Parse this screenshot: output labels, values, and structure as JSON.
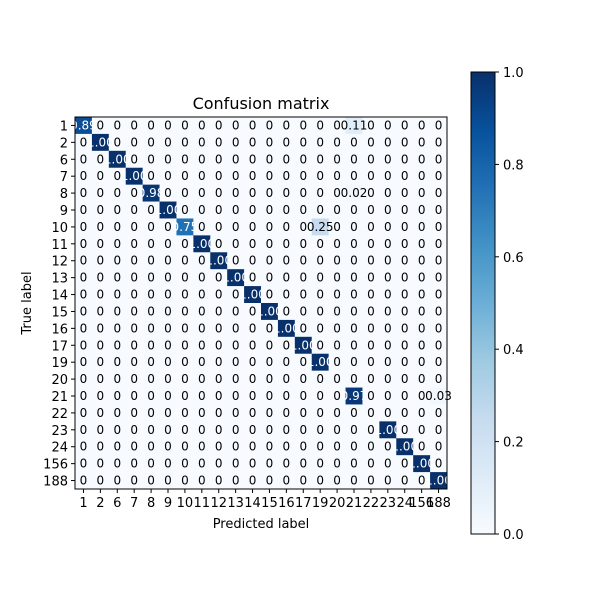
{
  "chart_data": {
    "type": "heatmap",
    "title": "Confusion matrix",
    "xlabel": "Predicted label",
    "ylabel": "True label",
    "labels": [
      "1",
      "2",
      "6",
      "7",
      "8",
      "9",
      "10",
      "11",
      "12",
      "13",
      "14",
      "15",
      "16",
      "17",
      "19",
      "20",
      "21",
      "22",
      "23",
      "24",
      "156",
      "188"
    ],
    "matrix": [
      [
        0.89,
        0,
        0,
        0,
        0,
        0,
        0,
        0,
        0,
        0,
        0,
        0,
        0,
        0,
        0,
        0,
        0.11,
        0,
        0,
        0,
        0,
        0
      ],
      [
        0,
        1.0,
        0,
        0,
        0,
        0,
        0,
        0,
        0,
        0,
        0,
        0,
        0,
        0,
        0,
        0,
        0,
        0,
        0,
        0,
        0,
        0
      ],
      [
        0,
        0,
        1.0,
        0,
        0,
        0,
        0,
        0,
        0,
        0,
        0,
        0,
        0,
        0,
        0,
        0,
        0,
        0,
        0,
        0,
        0,
        0
      ],
      [
        0,
        0,
        0,
        1.0,
        0,
        0,
        0,
        0,
        0,
        0,
        0,
        0,
        0,
        0,
        0,
        0,
        0,
        0,
        0,
        0,
        0,
        0
      ],
      [
        0,
        0,
        0,
        0,
        0.98,
        0,
        0,
        0,
        0,
        0,
        0,
        0,
        0,
        0,
        0,
        0,
        0.02,
        0,
        0,
        0,
        0,
        0
      ],
      [
        0,
        0,
        0,
        0,
        0,
        1.0,
        0,
        0,
        0,
        0,
        0,
        0,
        0,
        0,
        0,
        0,
        0,
        0,
        0,
        0,
        0,
        0
      ],
      [
        0,
        0,
        0,
        0,
        0,
        0,
        0.75,
        0,
        0,
        0,
        0,
        0,
        0,
        0,
        0.25,
        0,
        0,
        0,
        0,
        0,
        0,
        0
      ],
      [
        0,
        0,
        0,
        0,
        0,
        0,
        0,
        1.0,
        0,
        0,
        0,
        0,
        0,
        0,
        0,
        0,
        0,
        0,
        0,
        0,
        0,
        0
      ],
      [
        0,
        0,
        0,
        0,
        0,
        0,
        0,
        0,
        1.0,
        0,
        0,
        0,
        0,
        0,
        0,
        0,
        0,
        0,
        0,
        0,
        0,
        0
      ],
      [
        0,
        0,
        0,
        0,
        0,
        0,
        0,
        0,
        0,
        1.0,
        0,
        0,
        0,
        0,
        0,
        0,
        0,
        0,
        0,
        0,
        0,
        0
      ],
      [
        0,
        0,
        0,
        0,
        0,
        0,
        0,
        0,
        0,
        0,
        1.0,
        0,
        0,
        0,
        0,
        0,
        0,
        0,
        0,
        0,
        0,
        0
      ],
      [
        0,
        0,
        0,
        0,
        0,
        0,
        0,
        0,
        0,
        0,
        0,
        1.0,
        0,
        0,
        0,
        0,
        0,
        0,
        0,
        0,
        0,
        0
      ],
      [
        0,
        0,
        0,
        0,
        0,
        0,
        0,
        0,
        0,
        0,
        0,
        0,
        1.0,
        0,
        0,
        0,
        0,
        0,
        0,
        0,
        0,
        0
      ],
      [
        0,
        0,
        0,
        0,
        0,
        0,
        0,
        0,
        0,
        0,
        0,
        0,
        0,
        1.0,
        0,
        0,
        0,
        0,
        0,
        0,
        0,
        0
      ],
      [
        0,
        0,
        0,
        0,
        0,
        0,
        0,
        0,
        0,
        0,
        0,
        0,
        0,
        0,
        1.0,
        0,
        0,
        0,
        0,
        0,
        0,
        0
      ],
      [
        0,
        0,
        0,
        0,
        0,
        0,
        0,
        0,
        0,
        0,
        0,
        0,
        0,
        0,
        0,
        0,
        0,
        0,
        0,
        0,
        0,
        0
      ],
      [
        0,
        0,
        0,
        0,
        0,
        0,
        0,
        0,
        0,
        0,
        0,
        0,
        0,
        0,
        0,
        0,
        0.97,
        0,
        0,
        0,
        0,
        0.03
      ],
      [
        0,
        0,
        0,
        0,
        0,
        0,
        0,
        0,
        0,
        0,
        0,
        0,
        0,
        0,
        0,
        0,
        0,
        0,
        0,
        0,
        0,
        0
      ],
      [
        0,
        0,
        0,
        0,
        0,
        0,
        0,
        0,
        0,
        0,
        0,
        0,
        0,
        0,
        0,
        0,
        0,
        0,
        1.0,
        0,
        0,
        0
      ],
      [
        0,
        0,
        0,
        0,
        0,
        0,
        0,
        0,
        0,
        0,
        0,
        0,
        0,
        0,
        0,
        0,
        0,
        0,
        0,
        1.0,
        0,
        0
      ],
      [
        0,
        0,
        0,
        0,
        0,
        0,
        0,
        0,
        0,
        0,
        0,
        0,
        0,
        0,
        0,
        0,
        0,
        0,
        0,
        0,
        1.0,
        0
      ],
      [
        0,
        0,
        0,
        0,
        0,
        0,
        0,
        0,
        0,
        0,
        0,
        0,
        0,
        0,
        0,
        0,
        0,
        0,
        0,
        0,
        0,
        1.0
      ]
    ],
    "cell_text": [
      [
        "0.89",
        "0",
        "0",
        "0",
        "0",
        "0",
        "0",
        "0",
        "0",
        "0",
        "0",
        "0",
        "0",
        "0",
        "0",
        "0",
        "0.11",
        "0",
        "0",
        "0",
        "0",
        "0"
      ],
      [
        "0",
        "1.00",
        "0",
        "0",
        "0",
        "0",
        "0",
        "0",
        "0",
        "0",
        "0",
        "0",
        "0",
        "0",
        "0",
        "0",
        "0",
        "0",
        "0",
        "0",
        "0",
        "0"
      ],
      [
        "0",
        "0",
        "1.00",
        "0",
        "0",
        "0",
        "0",
        "0",
        "0",
        "0",
        "0",
        "0",
        "0",
        "0",
        "0",
        "0",
        "0",
        "0",
        "0",
        "0",
        "0",
        "0"
      ],
      [
        "0",
        "0",
        "0",
        "1.00",
        "0",
        "0",
        "0",
        "0",
        "0",
        "0",
        "0",
        "0",
        "0",
        "0",
        "0",
        "0",
        "0",
        "0",
        "0",
        "0",
        "0",
        "0"
      ],
      [
        "0",
        "0",
        "0",
        "0",
        "0.98",
        "0",
        "0",
        "0",
        "0",
        "0",
        "0",
        "0",
        "0",
        "0",
        "0",
        "0",
        "0.02",
        "0",
        "0",
        "0",
        "0",
        "0"
      ],
      [
        "0",
        "0",
        "0",
        "0",
        "0",
        "1.00",
        "0",
        "0",
        "0",
        "0",
        "0",
        "0",
        "0",
        "0",
        "0",
        "0",
        "0",
        "0",
        "0",
        "0",
        "0",
        "0"
      ],
      [
        "0",
        "0",
        "0",
        "0",
        "0",
        "0",
        "0.75",
        "0",
        "0",
        "0",
        "0",
        "0",
        "0",
        "0",
        "0.25",
        "0",
        "0",
        "0",
        "0",
        "0",
        "0",
        "0"
      ],
      [
        "0",
        "0",
        "0",
        "0",
        "0",
        "0",
        "0",
        "1.00",
        "0",
        "0",
        "0",
        "0",
        "0",
        "0",
        "0",
        "0",
        "0",
        "0",
        "0",
        "0",
        "0",
        "0"
      ],
      [
        "0",
        "0",
        "0",
        "0",
        "0",
        "0",
        "0",
        "0",
        "1.00",
        "0",
        "0",
        "0",
        "0",
        "0",
        "0",
        "0",
        "0",
        "0",
        "0",
        "0",
        "0",
        "0"
      ],
      [
        "0",
        "0",
        "0",
        "0",
        "0",
        "0",
        "0",
        "0",
        "0",
        "1.00",
        "0",
        "0",
        "0",
        "0",
        "0",
        "0",
        "0",
        "0",
        "0",
        "0",
        "0",
        "0"
      ],
      [
        "0",
        "0",
        "0",
        "0",
        "0",
        "0",
        "0",
        "0",
        "0",
        "0",
        "1.00",
        "0",
        "0",
        "0",
        "0",
        "0",
        "0",
        "0",
        "0",
        "0",
        "0",
        "0"
      ],
      [
        "0",
        "0",
        "0",
        "0",
        "0",
        "0",
        "0",
        "0",
        "0",
        "0",
        "0",
        "1.00",
        "0",
        "0",
        "0",
        "0",
        "0",
        "0",
        "0",
        "0",
        "0",
        "0"
      ],
      [
        "0",
        "0",
        "0",
        "0",
        "0",
        "0",
        "0",
        "0",
        "0",
        "0",
        "0",
        "0",
        "1.00",
        "0",
        "0",
        "0",
        "0",
        "0",
        "0",
        "0",
        "0",
        "0"
      ],
      [
        "0",
        "0",
        "0",
        "0",
        "0",
        "0",
        "0",
        "0",
        "0",
        "0",
        "0",
        "0",
        "0",
        "1.00",
        "0",
        "0",
        "0",
        "0",
        "0",
        "0",
        "0",
        "0"
      ],
      [
        "0",
        "0",
        "0",
        "0",
        "0",
        "0",
        "0",
        "0",
        "0",
        "0",
        "0",
        "0",
        "0",
        "0",
        "1.00",
        "0",
        "0",
        "0",
        "0",
        "0",
        "0",
        "0"
      ],
      [
        "0",
        "0",
        "0",
        "0",
        "0",
        "0",
        "0",
        "0",
        "0",
        "0",
        "0",
        "0",
        "0",
        "0",
        "0",
        "0",
        "0",
        "0",
        "0",
        "0",
        "0",
        "0"
      ],
      [
        "0",
        "0",
        "0",
        "0",
        "0",
        "0",
        "0",
        "0",
        "0",
        "0",
        "0",
        "0",
        "0",
        "0",
        "0",
        "0",
        "0.97",
        "0",
        "0",
        "0",
        "0",
        "0.03"
      ],
      [
        "0",
        "0",
        "0",
        "0",
        "0",
        "0",
        "0",
        "0",
        "0",
        "0",
        "0",
        "0",
        "0",
        "0",
        "0",
        "0",
        "0",
        "0",
        "0",
        "0",
        "0",
        "0"
      ],
      [
        "0",
        "0",
        "0",
        "0",
        "0",
        "0",
        "0",
        "0",
        "0",
        "0",
        "0",
        "0",
        "0",
        "0",
        "0",
        "0",
        "0",
        "0",
        "1.00",
        "0",
        "0",
        "0"
      ],
      [
        "0",
        "0",
        "0",
        "0",
        "0",
        "0",
        "0",
        "0",
        "0",
        "0",
        "0",
        "0",
        "0",
        "0",
        "0",
        "0",
        "0",
        "0",
        "0",
        "1.00",
        "0",
        "0"
      ],
      [
        "0",
        "0",
        "0",
        "0",
        "0",
        "0",
        "0",
        "0",
        "0",
        "0",
        "0",
        "0",
        "0",
        "0",
        "0",
        "0",
        "0",
        "0",
        "0",
        "0",
        "1.00",
        "0"
      ],
      [
        "0",
        "0",
        "0",
        "0",
        "0",
        "0",
        "0",
        "0",
        "0",
        "0",
        "0",
        "0",
        "0",
        "0",
        "0",
        "0",
        "0",
        "0",
        "0",
        "0",
        "0",
        "1.00"
      ]
    ],
    "colorbar": {
      "range": [
        0,
        1
      ],
      "ticks": [
        "0.0",
        "0.2",
        "0.4",
        "0.6",
        "0.8",
        "1.0"
      ],
      "colormap": "Blues",
      "low_color": "#f7fbff",
      "high_color": "#08306b"
    },
    "grid": false
  }
}
